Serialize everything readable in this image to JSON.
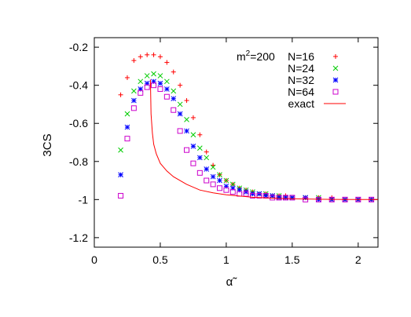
{
  "chart_data": {
    "type": "scatter",
    "title": "",
    "annotation": {
      "base": "m",
      "sup": "2",
      "suffix": "=200"
    },
    "xlabel": "α̃",
    "ylabel": "3CS",
    "xlim": [
      0,
      2.15
    ],
    "ylim": [
      -1.25,
      -0.15
    ],
    "x_ticks": [
      0,
      0.5,
      1,
      1.5,
      2
    ],
    "x_tick_labels": [
      "0",
      "0.5",
      "1",
      "1.5",
      "2"
    ],
    "y_ticks": [
      -0.2,
      -0.4,
      -0.6,
      -0.8,
      -1,
      -1.2
    ],
    "y_tick_labels": [
      "-0.2",
      "-0.4",
      "-0.6",
      "-0.8",
      "-1",
      "-1.2"
    ],
    "grid": false,
    "legend_position": "top-right",
    "series": [
      {
        "name": "N=16",
        "marker": "plus",
        "color": "#ff0000",
        "x": [
          0.2,
          0.25,
          0.3,
          0.35,
          0.4,
          0.45,
          0.5,
          0.55,
          0.6,
          0.65,
          0.7,
          0.75,
          0.8,
          0.85,
          0.9,
          0.95,
          1.0,
          1.05,
          1.1,
          1.15,
          1.2,
          1.25,
          1.3,
          1.35,
          1.4,
          1.45,
          1.5,
          1.6,
          1.7,
          1.8,
          1.9,
          2.0,
          2.1
        ],
        "y": [
          -0.45,
          -0.36,
          -0.27,
          -0.25,
          -0.24,
          -0.24,
          -0.25,
          -0.28,
          -0.33,
          -0.4,
          -0.48,
          -0.57,
          -0.66,
          -0.75,
          -0.82,
          -0.87,
          -0.9,
          -0.92,
          -0.94,
          -0.95,
          -0.96,
          -0.97,
          -0.97,
          -0.98,
          -0.98,
          -0.98,
          -0.99,
          -0.99,
          -0.99,
          -0.99,
          -1.0,
          -1.0,
          -1.0
        ]
      },
      {
        "name": "N=24",
        "marker": "cross",
        "color": "#00cc00",
        "x": [
          0.2,
          0.25,
          0.3,
          0.35,
          0.4,
          0.45,
          0.5,
          0.55,
          0.6,
          0.65,
          0.7,
          0.75,
          0.8,
          0.85,
          0.9,
          0.95,
          1.0,
          1.05,
          1.1,
          1.15,
          1.2,
          1.25,
          1.3,
          1.35,
          1.4,
          1.45,
          1.5,
          1.6,
          1.7,
          1.8,
          1.9,
          2.0,
          2.1
        ],
        "y": [
          -0.74,
          -0.55,
          -0.43,
          -0.38,
          -0.35,
          -0.34,
          -0.35,
          -0.38,
          -0.43,
          -0.5,
          -0.58,
          -0.66,
          -0.73,
          -0.78,
          -0.83,
          -0.87,
          -0.9,
          -0.92,
          -0.94,
          -0.95,
          -0.96,
          -0.97,
          -0.97,
          -0.98,
          -0.98,
          -0.99,
          -0.99,
          -0.99,
          -0.99,
          -1.0,
          -1.0,
          -1.0,
          -1.0
        ]
      },
      {
        "name": "N=32",
        "marker": "star",
        "color": "#0000ff",
        "x": [
          0.2,
          0.25,
          0.3,
          0.35,
          0.4,
          0.45,
          0.5,
          0.55,
          0.6,
          0.65,
          0.7,
          0.75,
          0.8,
          0.85,
          0.9,
          0.95,
          1.0,
          1.05,
          1.1,
          1.15,
          1.2,
          1.25,
          1.3,
          1.35,
          1.4,
          1.45,
          1.5,
          1.6,
          1.7,
          1.8,
          1.9,
          2.0,
          2.1
        ],
        "y": [
          -0.87,
          -0.62,
          -0.48,
          -0.42,
          -0.39,
          -0.38,
          -0.39,
          -0.42,
          -0.47,
          -0.55,
          -0.64,
          -0.72,
          -0.78,
          -0.84,
          -0.88,
          -0.9,
          -0.93,
          -0.94,
          -0.95,
          -0.96,
          -0.97,
          -0.97,
          -0.98,
          -0.98,
          -0.99,
          -0.99,
          -0.99,
          -0.99,
          -1.0,
          -1.0,
          -1.0,
          -1.0,
          -1.0
        ]
      },
      {
        "name": "N=64",
        "marker": "square",
        "color": "#cc00cc",
        "x": [
          0.2,
          0.25,
          0.3,
          0.35,
          0.4,
          0.45,
          0.5,
          0.55,
          0.6,
          0.65,
          0.7,
          0.75,
          0.8,
          0.85,
          0.9,
          0.95,
          1.0,
          1.05,
          1.1,
          1.15,
          1.2,
          1.25,
          1.3,
          1.35,
          1.4,
          1.45,
          1.5,
          1.6,
          1.7,
          1.8,
          1.9,
          2.0,
          2.1
        ],
        "y": [
          -0.98,
          -0.68,
          -0.52,
          -0.44,
          -0.41,
          -0.4,
          -0.42,
          -0.46,
          -0.53,
          -0.64,
          -0.74,
          -0.81,
          -0.86,
          -0.9,
          -0.92,
          -0.94,
          -0.95,
          -0.96,
          -0.97,
          -0.97,
          -0.98,
          -0.98,
          -0.98,
          -0.99,
          -0.99,
          -0.99,
          -0.99,
          -1.0,
          -1.0,
          -1.0,
          -1.0,
          -1.0,
          -1.0
        ]
      },
      {
        "name": "exact",
        "marker": "line",
        "color": "#ff0000",
        "x": [
          0.425,
          0.43,
          0.44,
          0.45,
          0.47,
          0.5,
          0.55,
          0.6,
          0.7,
          0.8,
          0.9,
          1.0,
          1.2,
          1.4,
          1.6,
          1.8,
          2.0,
          2.15
        ],
        "y": [
          -0.37,
          -0.55,
          -0.65,
          -0.71,
          -0.76,
          -0.81,
          -0.85,
          -0.88,
          -0.92,
          -0.95,
          -0.965,
          -0.975,
          -0.988,
          -0.994,
          -0.997,
          -0.999,
          -1.0,
          -1.0
        ]
      }
    ]
  }
}
